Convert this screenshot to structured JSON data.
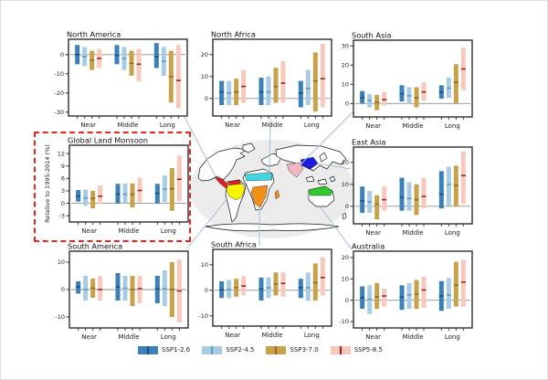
{
  "figure": {
    "description": "Regional monsoon precipitation change, box plots relative to 1995-2014, for Near / Middle / Long term under four SSP scenarios",
    "highlight_color": "#e8251c",
    "connector_color": "#a9bed9",
    "zero_line_color": "#8f8f8f",
    "frame_color": "#2e2e2e"
  },
  "scenarios": [
    {
      "name": "SSP1-2.6",
      "color": "#3b80b8",
      "median_color": "#17527f"
    },
    {
      "name": "SSP2-4.5",
      "color": "#a8cce4",
      "median_color": "#5d9bc7"
    },
    {
      "name": "SSP3-7.0",
      "color": "#c7a24b",
      "median_color": "#8f6e1e"
    },
    {
      "name": "SSP5-8.5",
      "color": "#f7c9bd",
      "median_color": "#a81f1a"
    }
  ],
  "chart_data": [
    {
      "type": "box",
      "title": "North America",
      "ylabel": "",
      "ylim": [
        -32,
        8
      ],
      "yticks": [
        0,
        -10,
        -20,
        -30
      ],
      "categories": [
        "Near",
        "Middle",
        "Long"
      ],
      "series": [
        {
          "scenario": "SSP1-2.6",
          "boxes": [
            [
              -5,
              5,
              0
            ],
            [
              -5,
              5,
              -0.5
            ],
            [
              -7,
              6,
              -1
            ]
          ]
        },
        {
          "scenario": "SSP2-4.5",
          "boxes": [
            [
              -6,
              4,
              -1
            ],
            [
              -8,
              4,
              -2
            ],
            [
              -11,
              4,
              -3.5
            ]
          ]
        },
        {
          "scenario": "SSP3-7.0",
          "boxes": [
            [
              -8,
              2,
              -3
            ],
            [
              -11,
              2,
              -4.5
            ],
            [
              -25,
              2,
              -11.5
            ]
          ]
        },
        {
          "scenario": "SSP5-8.5",
          "boxes": [
            [
              -7,
              3,
              -2
            ],
            [
              -14,
              3,
              -5
            ],
            [
              -28,
              5,
              -13.5
            ]
          ]
        }
      ]
    },
    {
      "type": "box",
      "title": "North Africa",
      "ylabel": "",
      "ylim": [
        -8,
        27
      ],
      "yticks": [
        20,
        10,
        0
      ],
      "categories": [
        "Near",
        "Middle",
        "Long"
      ],
      "series": [
        {
          "scenario": "SSP1-2.6",
          "boxes": [
            [
              -3,
              8,
              3
            ],
            [
              -3,
              9.5,
              3
            ],
            [
              -4,
              8,
              2.5
            ]
          ]
        },
        {
          "scenario": "SSP2-4.5",
          "boxes": [
            [
              -3,
              8,
              2.5
            ],
            [
              -3,
              10,
              3
            ],
            [
              -3,
              13,
              4.5
            ]
          ]
        },
        {
          "scenario": "SSP3-7.0",
          "boxes": [
            [
              -3,
              9,
              3
            ],
            [
              -2,
              14,
              5.5
            ],
            [
              -6,
              21,
              8
            ]
          ]
        },
        {
          "scenario": "SSP5-8.5",
          "boxes": [
            [
              -2,
              13,
              5.5
            ],
            [
              -2,
              17,
              7
            ],
            [
              -4,
              25,
              9
            ]
          ]
        }
      ]
    },
    {
      "type": "box",
      "title": "South Asia",
      "ylabel": "",
      "ylim": [
        -7,
        33
      ],
      "yticks": [
        30,
        20,
        10,
        0
      ],
      "categories": [
        "Near",
        "Middle",
        "Long"
      ],
      "series": [
        {
          "scenario": "SSP1-2.6",
          "boxes": [
            [
              0,
              6.5,
              3
            ],
            [
              1,
              9.5,
              5
            ],
            [
              2.5,
              9.5,
              6
            ]
          ]
        },
        {
          "scenario": "SSP2-4.5",
          "boxes": [
            [
              -2,
              5,
              1.5
            ],
            [
              0,
              8.5,
              4
            ],
            [
              3,
              13.5,
              8
            ]
          ]
        },
        {
          "scenario": "SSP3-7.0",
          "boxes": [
            [
              -3.5,
              4.5,
              0.5
            ],
            [
              -2,
              8.5,
              3
            ],
            [
              0,
              20.5,
              11
            ]
          ]
        },
        {
          "scenario": "SSP5-8.5",
          "boxes": [
            [
              -1,
              6,
              2
            ],
            [
              1.5,
              11,
              6
            ],
            [
              7,
              29,
              18
            ]
          ]
        }
      ]
    },
    {
      "type": "box",
      "title": "Global Land Monsoon",
      "ylabel": "Relative to 1995-2014 (%)",
      "ylim": [
        -4.5,
        14
      ],
      "yticks": [
        12,
        9,
        6,
        3,
        0,
        -3
      ],
      "categories": [
        "Near",
        "Middle",
        "Long"
      ],
      "series": [
        {
          "scenario": "SSP1-2.6",
          "boxes": [
            [
              0.4,
              3.2,
              1.7
            ],
            [
              0,
              4.7,
              2.2
            ],
            [
              0,
              4.7,
              2.4
            ]
          ]
        },
        {
          "scenario": "SSP2-4.5",
          "boxes": [
            [
              -0.6,
              3.3,
              1.3
            ],
            [
              0,
              4.8,
              2.2
            ],
            [
              0.3,
              6.7,
              3.4
            ]
          ]
        },
        {
          "scenario": "SSP3-7.0",
          "boxes": [
            [
              -1.2,
              3.0,
              1.2
            ],
            [
              -1,
              4.8,
              2.2
            ],
            [
              -1.8,
              8.5,
              3.5
            ]
          ]
        },
        {
          "scenario": "SSP5-8.5",
          "boxes": [
            [
              -0.2,
              4.3,
              1.7
            ],
            [
              0.3,
              6.2,
              3.1
            ],
            [
              0.5,
              11.5,
              5.8
            ]
          ]
        }
      ]
    },
    {
      "type": "box",
      "title": "East Asia",
      "ylabel": "",
      "ylim": [
        -8,
        27
      ],
      "yticks": [
        20,
        10,
        0
      ],
      "categories": [
        "Near",
        "Middle",
        "Long"
      ],
      "series": [
        {
          "scenario": "SSP1-2.6",
          "boxes": [
            [
              -3,
              9,
              2.5
            ],
            [
              -2,
              13,
              4
            ],
            [
              -1,
              16,
              5.5
            ]
          ]
        },
        {
          "scenario": "SSP2-4.5",
          "boxes": [
            [
              -3,
              7,
              2
            ],
            [
              -2,
              11,
              3.5
            ],
            [
              0,
              18,
              10
            ]
          ]
        },
        {
          "scenario": "SSP3-7.0",
          "boxes": [
            [
              -6,
              5,
              1
            ],
            [
              -4,
              10,
              3
            ],
            [
              0,
              18.5,
              9.5
            ]
          ]
        },
        {
          "scenario": "SSP5-8.5",
          "boxes": [
            [
              -2,
              9,
              3
            ],
            [
              -1,
              13,
              4.5
            ],
            [
              1,
              25,
              14
            ]
          ]
        }
      ]
    },
    {
      "type": "box",
      "title": "South America",
      "ylabel": "",
      "ylim": [
        -14,
        14
      ],
      "yticks": [
        10,
        0,
        -10
      ],
      "categories": [
        "Near",
        "Middle",
        "Long"
      ],
      "series": [
        {
          "scenario": "SSP1-2.6",
          "boxes": [
            [
              -1.5,
              3,
              1
            ],
            [
              -4,
              6,
              1
            ],
            [
              -5,
              5,
              0.3
            ]
          ]
        },
        {
          "scenario": "SSP2-4.5",
          "boxes": [
            [
              -4,
              5,
              0
            ],
            [
              -4,
              5,
              0.5
            ],
            [
              -6,
              7,
              0.3
            ]
          ]
        },
        {
          "scenario": "SSP3-7.0",
          "boxes": [
            [
              -3,
              4,
              0.5
            ],
            [
              -6,
              5,
              0
            ],
            [
              -10,
              10,
              0
            ]
          ]
        },
        {
          "scenario": "SSP5-8.5",
          "boxes": [
            [
              -4,
              5,
              0
            ],
            [
              -5,
              5,
              0.3
            ],
            [
              -12,
              11,
              -0.5
            ]
          ]
        }
      ]
    },
    {
      "type": "box",
      "title": "South Africa",
      "ylabel": "",
      "ylim": [
        -14,
        16
      ],
      "yticks": [
        10,
        0,
        -10
      ],
      "categories": [
        "Near",
        "Middle",
        "Long"
      ],
      "series": [
        {
          "scenario": "SSP1-2.6",
          "boxes": [
            [
              -3,
              3.5,
              0.2
            ],
            [
              -4,
              5,
              0.5
            ],
            [
              -3,
              4.5,
              1
            ]
          ]
        },
        {
          "scenario": "SSP2-4.5",
          "boxes": [
            [
              -3,
              4,
              0.3
            ],
            [
              -3,
              5,
              1
            ],
            [
              -4,
              7,
              1
            ]
          ]
        },
        {
          "scenario": "SSP3-7.0",
          "boxes": [
            [
              -2.5,
              4.5,
              1
            ],
            [
              -2,
              7,
              2.5
            ],
            [
              -4,
              10.5,
              3
            ]
          ]
        },
        {
          "scenario": "SSP5-8.5",
          "boxes": [
            [
              -2,
              5.5,
              1.7
            ],
            [
              -2.5,
              7,
              2.7
            ],
            [
              -2,
              13,
              5
            ]
          ]
        }
      ]
    },
    {
      "type": "box",
      "title": "Australia",
      "ylabel": "",
      "ylim": [
        -13,
        23
      ],
      "yticks": [
        20,
        10,
        0,
        -10
      ],
      "categories": [
        "Near",
        "Middle",
        "Long"
      ],
      "series": [
        {
          "scenario": "SSP1-2.6",
          "boxes": [
            [
              -4,
              6.5,
              1.2
            ],
            [
              -4.5,
              7,
              1.5
            ],
            [
              -5,
              9,
              2
            ]
          ]
        },
        {
          "scenario": "SSP2-4.5",
          "boxes": [
            [
              -6.5,
              7,
              0.5
            ],
            [
              -4,
              8,
              2.5
            ],
            [
              -4,
              10.5,
              2.5
            ]
          ]
        },
        {
          "scenario": "SSP3-7.0",
          "boxes": [
            [
              -4,
              8,
              1.5
            ],
            [
              -4,
              9.5,
              3
            ],
            [
              -3,
              18,
              7
            ]
          ]
        },
        {
          "scenario": "SSP5-8.5",
          "boxes": [
            [
              -3,
              5.5,
              2
            ],
            [
              -3.5,
              11,
              4.8
            ],
            [
              -3,
              19,
              8.5
            ]
          ]
        }
      ]
    }
  ],
  "map": {
    "ocean_color": "#ececec",
    "land_color": "#ffffff",
    "outline_color": "#1a1a1a",
    "regions": [
      {
        "name": "North America monsoon",
        "color": "#e11f26"
      },
      {
        "name": "Northern South America monsoon",
        "color": "#e11f26"
      },
      {
        "name": "South America monsoon",
        "color": "#fbf500"
      },
      {
        "name": "North Africa monsoon",
        "color": "#41d6e3"
      },
      {
        "name": "South Africa monsoon",
        "color": "#f39019"
      },
      {
        "name": "Madagascar monsoon",
        "color": "#f39019"
      },
      {
        "name": "South Asia monsoon",
        "color": "#f5b6c5"
      },
      {
        "name": "East Asia monsoon",
        "color": "#1b1be0"
      },
      {
        "name": "Australia monsoon",
        "color": "#2fca2f"
      }
    ]
  }
}
